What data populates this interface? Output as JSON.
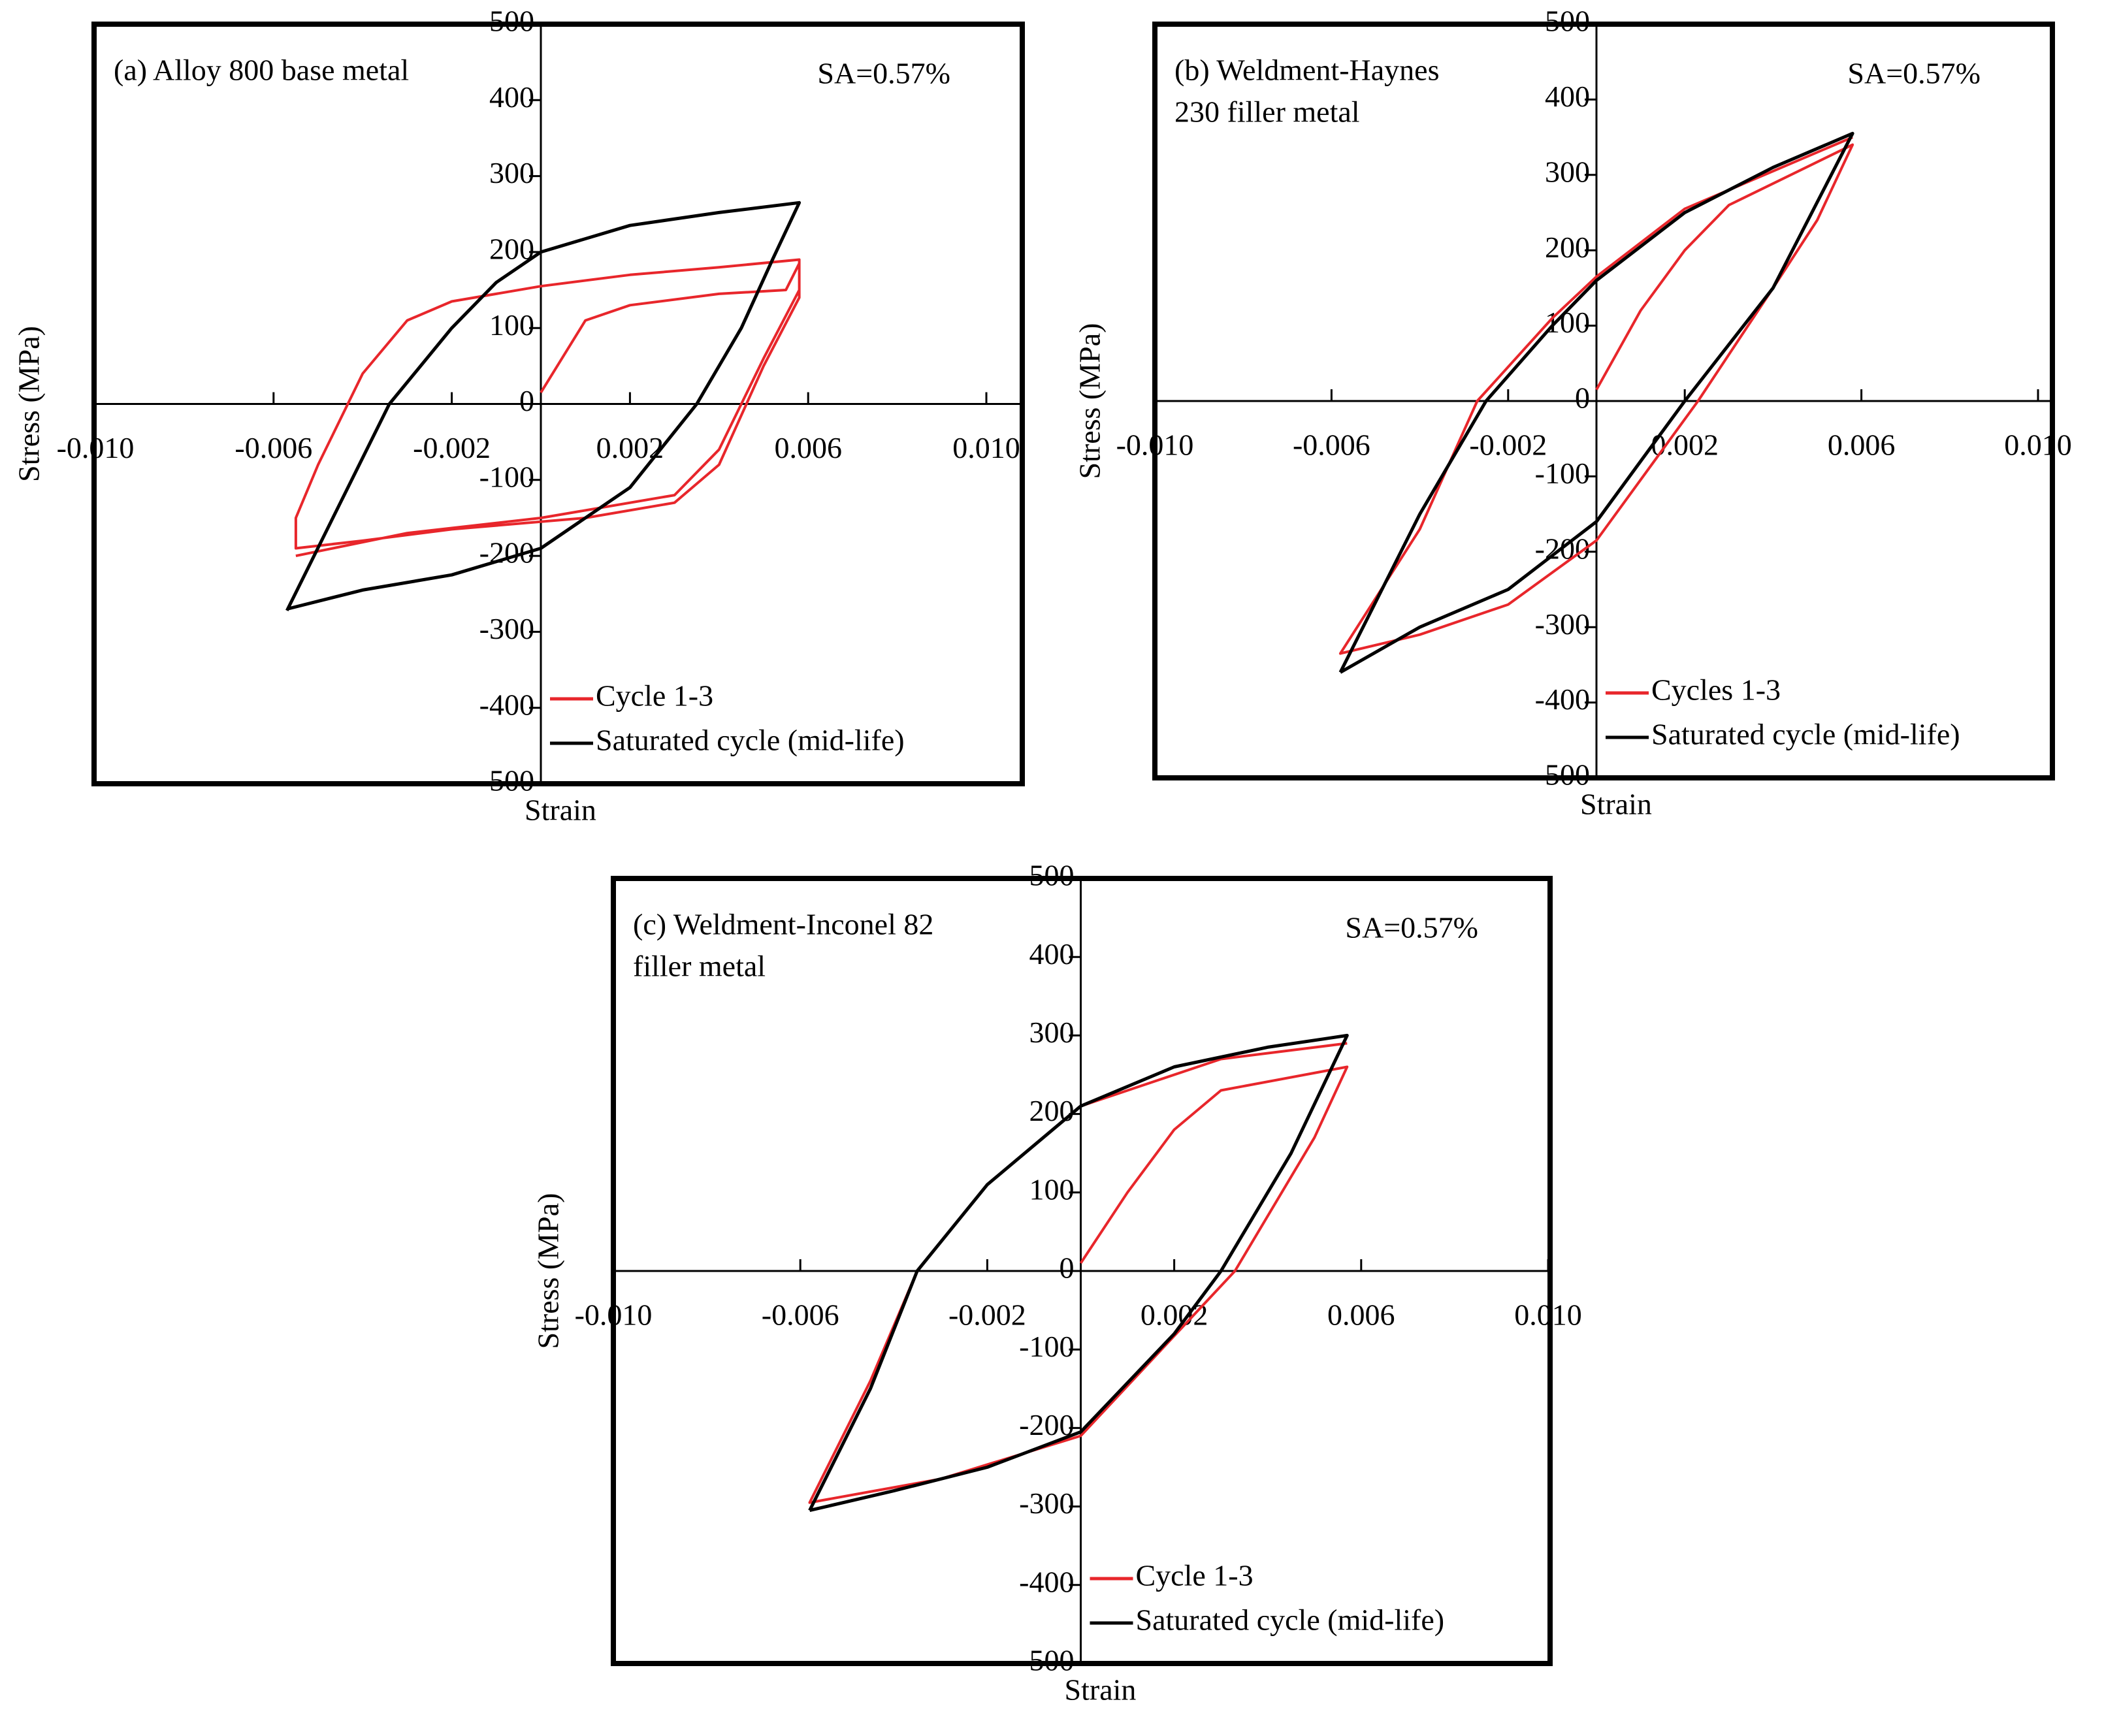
{
  "chart_data": [
    {
      "type": "line",
      "title": [
        "(a) Alloy  800 base metal"
      ],
      "annotation": "SA=0.57%",
      "xlabel": "Strain",
      "ylabel": "Stress (MPa)",
      "xlim": [
        -0.01,
        0.01
      ],
      "ylim": [
        -500,
        500
      ],
      "xticks": [
        {
          "value": -0.01,
          "label": "-0.010"
        },
        -0.006,
        -0.002,
        0.002,
        0.006,
        {
          "value": 0.01,
          "label": "0.010"
        }
      ],
      "yticks": [
        -500,
        -400,
        -300,
        -200,
        -100,
        0,
        100,
        200,
        300,
        400,
        500
      ],
      "legend": "lower left",
      "series": [
        {
          "name": "Cycle 1-3",
          "color": "#e8262b",
          "x": [
            0,
            0.001,
            0.002,
            0.004,
            0.0055,
            0.0058,
            0.0058,
            0.005,
            0.004,
            0.003,
            0.001,
            -0.002,
            -0.004,
            -0.0055,
            -0.0055,
            -0.005,
            -0.004,
            -0.003,
            -0.002,
            0,
            0.002,
            0.004,
            0.0058,
            0.0058,
            0.005,
            0.004,
            0.003,
            0,
            -0.003,
            -0.0055
          ],
          "values": [
            15,
            110,
            130,
            145,
            150,
            185,
            140,
            50,
            -80,
            -130,
            -150,
            -165,
            -180,
            -190,
            -150,
            -80,
            40,
            110,
            135,
            155,
            170,
            180,
            190,
            150,
            60,
            -60,
            -120,
            -150,
            -170,
            -200
          ]
        },
        {
          "name": "Saturated cycle (mid-life)",
          "color": "#000000",
          "x": [
            -0.0057,
            -0.0045,
            -0.0034,
            -0.002,
            -0.001,
            0,
            0.002,
            0.004,
            0.0058,
            0.0052,
            0.0045,
            0.0035,
            0.002,
            0,
            -0.002,
            -0.004,
            -0.0057
          ],
          "values": [
            -272,
            -130,
            0,
            100,
            160,
            200,
            235,
            252,
            265,
            190,
            100,
            0,
            -110,
            -190,
            -225,
            -245,
            -270
          ]
        }
      ]
    },
    {
      "type": "line",
      "title": [
        "(b) Weldment-Haynes",
        "230 filler metal"
      ],
      "annotation": "SA=0.57%",
      "xlabel": "Strain",
      "ylabel": "Stress (MPa)",
      "xlim": [
        -0.01,
        0.01
      ],
      "ylim": [
        -500,
        500
      ],
      "xticks": [
        {
          "value": -0.01,
          "label": "-0.010"
        },
        -0.006,
        -0.002,
        0.002,
        0.006,
        {
          "value": 0.01,
          "label": "0.010"
        }
      ],
      "yticks": [
        -500,
        -400,
        -300,
        -200,
        -100,
        0,
        100,
        200,
        300,
        400,
        500
      ],
      "legend": "lower left",
      "series": [
        {
          "name": "Cycles 1-3",
          "color": "#e8262b",
          "x": [
            0,
            0.001,
            0.002,
            0.003,
            0.0058,
            0.005,
            0.004,
            0.0023,
            0,
            -0.002,
            -0.004,
            -0.0058,
            -0.004,
            -0.0027,
            -0.001,
            0,
            0.002,
            0.004,
            0.0058
          ],
          "values": [
            15,
            120,
            200,
            260,
            340,
            240,
            150,
            0,
            -185,
            -270,
            -310,
            -335,
            -170,
            0,
            110,
            165,
            255,
            305,
            350
          ]
        },
        {
          "name": "Saturated cycle (mid-life)",
          "color": "#000000",
          "x": [
            -0.0058,
            -0.004,
            -0.0025,
            -0.001,
            0,
            0.002,
            0.004,
            0.0058,
            0.004,
            0.002,
            0,
            -0.002,
            -0.004,
            -0.0058
          ],
          "values": [
            -360,
            -150,
            0,
            100,
            160,
            250,
            310,
            355,
            150,
            0,
            -160,
            -250,
            -300,
            -360
          ]
        }
      ]
    },
    {
      "type": "line",
      "title": [
        "(c) Weldment-Inconel  82",
        "filler  metal"
      ],
      "annotation": "SA=0.57%",
      "xlabel": "Strain",
      "ylabel": "Stress (MPa)",
      "xlim": [
        -0.01,
        0.01
      ],
      "ylim": [
        -500,
        500
      ],
      "xticks": [
        {
          "value": -0.01,
          "label": "-0.010"
        },
        -0.006,
        -0.002,
        0.002,
        0.006,
        {
          "value": 0.01,
          "label": "0.010"
        }
      ],
      "yticks": [
        -500,
        -400,
        -300,
        -200,
        -100,
        0,
        100,
        200,
        300,
        400,
        500
      ],
      "legend": "lower left",
      "series": [
        {
          "name": "Cycle 1-3",
          "color": "#e8262b",
          "x": [
            0,
            0.001,
            0.002,
            0.003,
            0.0057,
            0.005,
            0.0033,
            0,
            -0.003,
            -0.0058,
            -0.0045,
            -0.0035,
            -0.002,
            0,
            0.003,
            0.0057
          ],
          "values": [
            10,
            100,
            180,
            230,
            260,
            170,
            0,
            -210,
            -265,
            -295,
            -140,
            0,
            110,
            210,
            270,
            290
          ]
        },
        {
          "name": "Saturated cycle (mid-life)",
          "color": "#000000",
          "x": [
            -0.0058,
            -0.0045,
            -0.0035,
            -0.002,
            0,
            0.002,
            0.004,
            0.0057,
            0.0045,
            0.003,
            0.002,
            0,
            -0.002,
            -0.004,
            -0.0058
          ],
          "values": [
            -305,
            -150,
            0,
            110,
            210,
            260,
            285,
            300,
            150,
            0,
            -80,
            -205,
            -250,
            -280,
            -305
          ]
        }
      ]
    }
  ]
}
